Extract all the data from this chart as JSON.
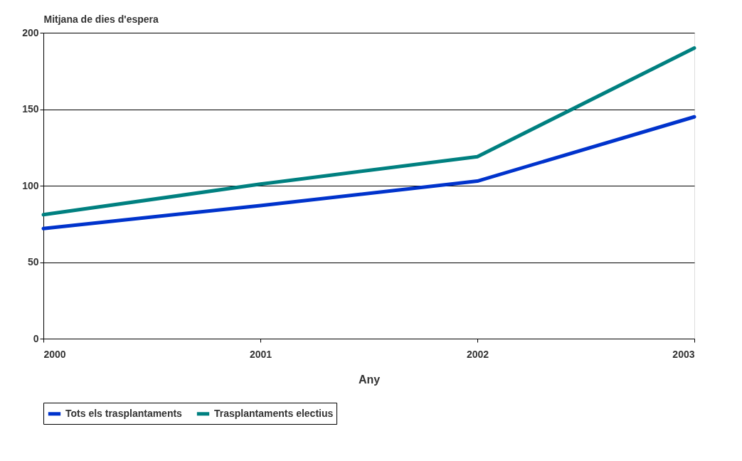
{
  "chart_data": {
    "type": "line",
    "ylabel": "Mitjana de dies d'espera",
    "xlabel": "Any",
    "x": [
      2000,
      2001,
      2002,
      2003
    ],
    "xlim": [
      2000,
      2003
    ],
    "xticks": [
      2000,
      2001,
      2002,
      2003
    ],
    "ylim": [
      0,
      200
    ],
    "yticks": [
      0,
      50,
      100,
      150,
      200
    ],
    "grid": "y",
    "legend": "bottom",
    "line_style": "solid",
    "marker": "none",
    "series": [
      {
        "name": "Tots els trasplantaments",
        "color": "#0033cc",
        "values": [
          72,
          87,
          103,
          145
        ]
      },
      {
        "name": "Trasplantaments electius",
        "color": "#008080",
        "values": [
          81,
          101,
          119,
          190
        ]
      }
    ]
  }
}
